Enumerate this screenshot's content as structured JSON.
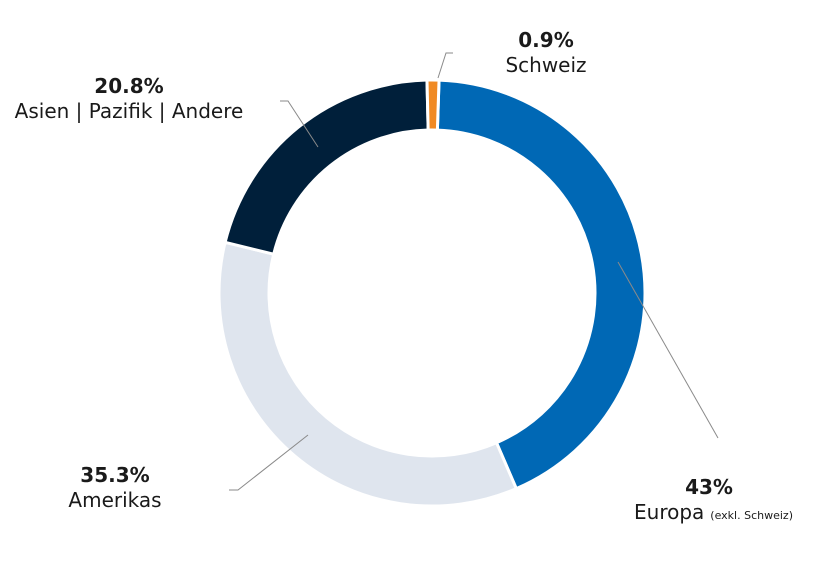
{
  "chart_data": {
    "type": "pie",
    "donut": true,
    "title": "",
    "slices": [
      {
        "label": "Europa",
        "note": "(exkl. Schweiz)",
        "value": 43,
        "value_label": "43%",
        "color": "#0068b5"
      },
      {
        "label": "Amerikas",
        "note": "",
        "value": 35.3,
        "value_label": "35.3%",
        "color": "#dfe5ee"
      },
      {
        "label": "Asien | Pazifik | Andere",
        "note": "",
        "value": 20.8,
        "value_label": "20.8%",
        "color": "#001f3a"
      },
      {
        "label": "Schweiz",
        "note": "",
        "value": 0.9,
        "value_label": "0.9%",
        "color": "#f08a24"
      }
    ],
    "legend": "none"
  }
}
